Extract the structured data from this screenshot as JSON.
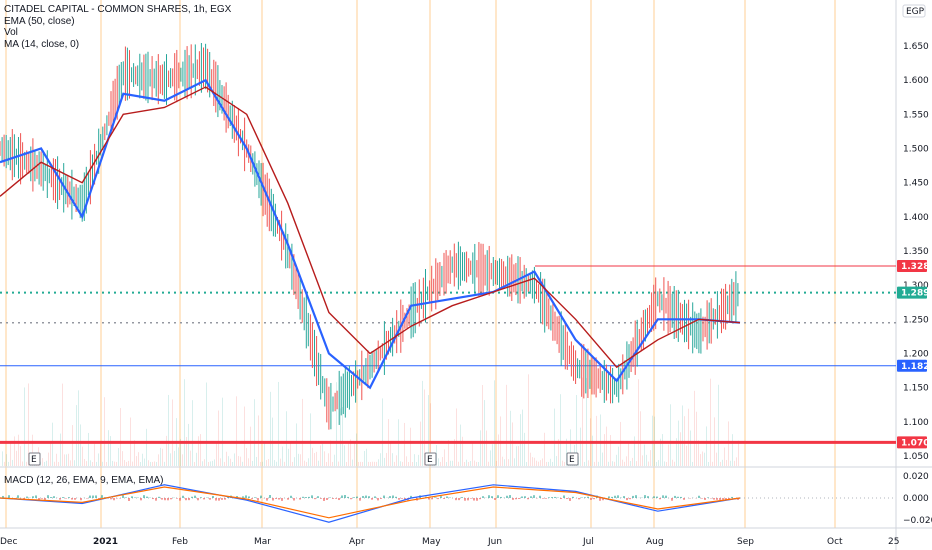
{
  "legend": {
    "title": "CITADEL CAPITAL - COMMON SHARES, 1h, EGX",
    "ema": "EMA (50, close)",
    "vol": "Vol",
    "ma": "MA (14, close, 0)",
    "macd": "MACD (12, 26, EMA, 9, EMA, EMA)"
  },
  "currency_label": "EGP",
  "colors": {
    "ema": "#b71c1c",
    "ma": "#2962ff",
    "candle_up": "#26a69a",
    "candle_down": "#ef5350",
    "resistance": "#f23645",
    "current": "#22ab94",
    "support_blue": "#2962ff",
    "support_red": "#f23645",
    "month_line": "#ffc47a"
  },
  "chart_data": [
    {
      "type": "line",
      "x_ticks": [
        "Dec",
        "2021",
        "Feb",
        "Mar",
        "Apr",
        "May",
        "Jun",
        "Jul",
        "Aug",
        "Sep",
        "Oct",
        "25"
      ],
      "y_ticks": [
        1.05,
        1.1,
        1.15,
        1.2,
        1.25,
        1.3,
        1.35,
        1.4,
        1.45,
        1.5,
        1.55,
        1.6,
        1.65
      ],
      "ylim": [
        1.03,
        1.68
      ],
      "price_lines": [
        {
          "label": "1.328",
          "value": 1.328,
          "role": "resistance"
        },
        {
          "label": "1.289",
          "value": 1.289,
          "role": "current"
        },
        {
          "label": "1.182",
          "value": 1.182,
          "role": "support_blue"
        },
        {
          "label": "1.070",
          "value": 1.07,
          "role": "support_red"
        }
      ],
      "ref_line_value": 1.245,
      "series": [
        {
          "role": "price",
          "x": [
            "Dec",
            "Dec",
            "2021",
            "2021",
            "Feb",
            "Feb",
            "Mar",
            "Mar",
            "Apr",
            "Apr",
            "May",
            "May",
            "Jun",
            "Jun",
            "Jul",
            "Jul",
            "Aug",
            "Aug",
            "Sep"
          ],
          "values": [
            1.5,
            1.47,
            1.42,
            1.61,
            1.6,
            1.62,
            1.5,
            1.35,
            1.12,
            1.18,
            1.26,
            1.33,
            1.32,
            1.3,
            1.18,
            1.15,
            1.28,
            1.23,
            1.289
          ]
        },
        {
          "role": "ma",
          "x": [
            "Dec",
            "Dec",
            "2021",
            "2021",
            "Feb",
            "Feb",
            "Mar",
            "Mar",
            "Apr",
            "Apr",
            "May",
            "May",
            "Jun",
            "Jun",
            "Jul",
            "Jul",
            "Aug",
            "Aug",
            "Sep"
          ],
          "values": [
            1.48,
            1.5,
            1.4,
            1.58,
            1.57,
            1.6,
            1.5,
            1.36,
            1.2,
            1.15,
            1.27,
            1.28,
            1.29,
            1.32,
            1.22,
            1.16,
            1.25,
            1.25,
            1.245
          ]
        },
        {
          "role": "ema",
          "x": [
            "Dec",
            "Dec",
            "2021",
            "2021",
            "Feb",
            "Feb",
            "Mar",
            "Mar",
            "Apr",
            "Apr",
            "May",
            "May",
            "Jun",
            "Jun",
            "Jul",
            "Jul",
            "Aug",
            "Aug",
            "Sep"
          ],
          "values": [
            1.43,
            1.48,
            1.45,
            1.55,
            1.56,
            1.59,
            1.55,
            1.42,
            1.26,
            1.2,
            1.24,
            1.27,
            1.29,
            1.31,
            1.25,
            1.18,
            1.22,
            1.25,
            1.245
          ]
        }
      ]
    },
    {
      "type": "line",
      "title": "MACD (12, 26, EMA, 9, EMA, EMA)",
      "y_ticks": [
        0.02,
        0.0,
        -0.02
      ],
      "y_tick_labels": [
        "0.020",
        "0.000",
        "−0.020"
      ],
      "ylim": [
        -0.03,
        0.035
      ],
      "series": [
        {
          "role": "macd",
          "x": [
            "Dec",
            "2021",
            "Feb",
            "Mar",
            "Apr",
            "May",
            "Jun",
            "Jul",
            "Aug",
            "Sep"
          ],
          "values": [
            0.0,
            -0.005,
            0.012,
            -0.002,
            -0.022,
            0.0,
            0.012,
            0.006,
            -0.012,
            0.0
          ]
        },
        {
          "role": "signal",
          "x": [
            "Dec",
            "2021",
            "Feb",
            "Mar",
            "Apr",
            "May",
            "Jun",
            "Jul",
            "Aug",
            "Sep"
          ],
          "values": [
            0.0,
            -0.004,
            0.01,
            -0.001,
            -0.018,
            -0.002,
            0.01,
            0.005,
            -0.01,
            0.0
          ]
        }
      ]
    }
  ],
  "events": [
    "E",
    "E",
    "E"
  ]
}
